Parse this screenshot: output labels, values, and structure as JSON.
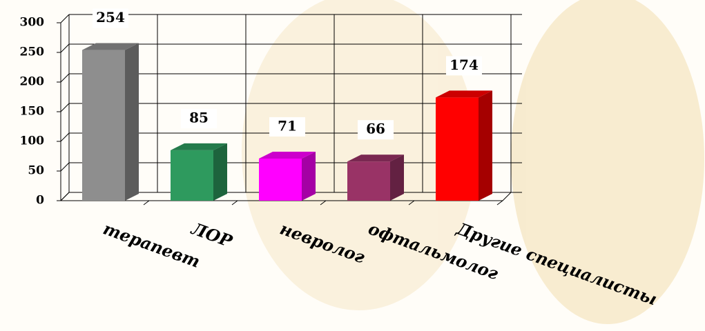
{
  "chart_data": {
    "type": "bar3d",
    "categories": [
      "терапевт",
      "ЛОР",
      "невролог",
      "офтальмолог",
      "Другие специалисты"
    ],
    "values": [
      254,
      85,
      71,
      66,
      174
    ],
    "colors": [
      "#8e8e8e",
      "#2e9a5e",
      "#ff00ff",
      "#993366",
      "#ff0000"
    ],
    "ylim": [
      0,
      300
    ],
    "yticks": [
      0,
      50,
      100,
      150,
      200,
      250,
      300
    ],
    "grid": true
  }
}
